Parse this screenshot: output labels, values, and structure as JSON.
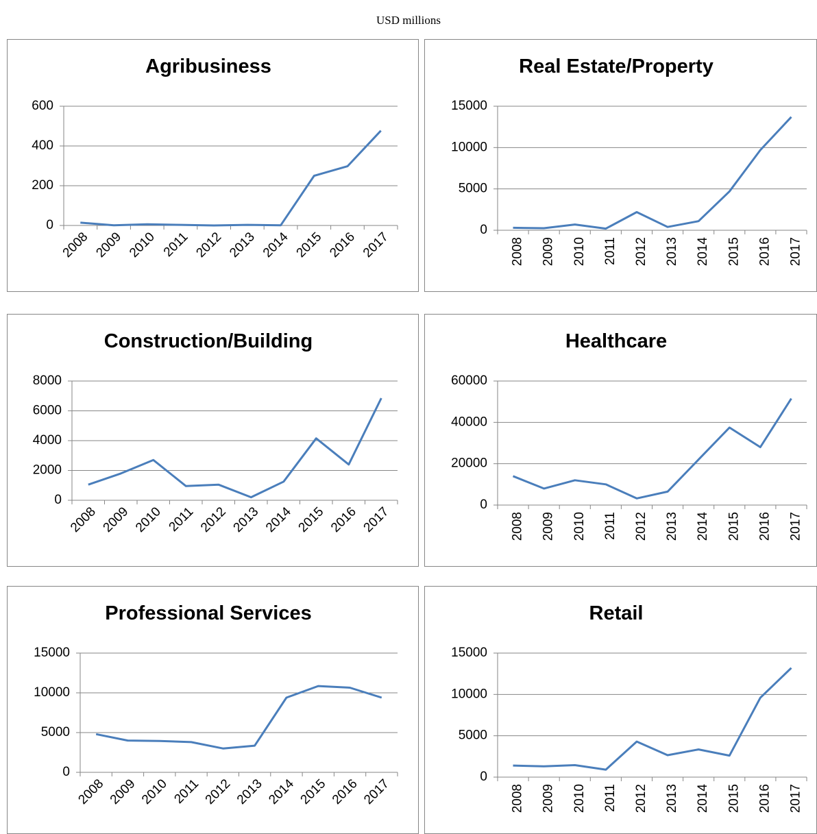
{
  "title": "USD millions",
  "chart_data": [
    {
      "type": "line",
      "title": "Agribusiness",
      "categories": [
        "2008",
        "2009",
        "2010",
        "2011",
        "2012",
        "2013",
        "2014",
        "2015",
        "2016",
        "2017"
      ],
      "values": [
        14,
        1,
        6,
        3,
        0,
        3,
        1,
        250,
        298,
        477
      ],
      "color": "#4a7ebb",
      "ylim": [
        0,
        600
      ],
      "yticks": [
        0,
        200,
        400,
        600
      ],
      "grid": true
    },
    {
      "type": "line",
      "title": "Real Estate/Property",
      "categories": [
        "2008",
        "2009",
        "2010",
        "2011",
        "2012",
        "2013",
        "2014",
        "2015",
        "2016",
        "2017"
      ],
      "values": [
        300,
        250,
        700,
        200,
        2200,
        400,
        1100,
        4700,
        9700,
        13700
      ],
      "color": "#4a7ebb",
      "ylim": [
        0,
        15000
      ],
      "yticks": [
        0,
        5000,
        10000,
        15000
      ],
      "grid": true
    },
    {
      "type": "line",
      "title": "Construction/Building",
      "categories": [
        "2008",
        "2009",
        "2010",
        "2011",
        "2012",
        "2013",
        "2014",
        "2015",
        "2016",
        "2017"
      ],
      "values": [
        1050,
        1800,
        2700,
        950,
        1050,
        200,
        1250,
        4150,
        2400,
        6850
      ],
      "color": "#4a7ebb",
      "ylim": [
        0,
        8000
      ],
      "yticks": [
        0,
        2000,
        4000,
        6000,
        8000
      ],
      "grid": true
    },
    {
      "type": "line",
      "title": "Healthcare",
      "categories": [
        "2008",
        "2009",
        "2010",
        "2011",
        "2012",
        "2013",
        "2014",
        "2015",
        "2016",
        "2017"
      ],
      "values": [
        14000,
        8000,
        12000,
        10000,
        3200,
        6500,
        22000,
        37500,
        28000,
        51500
      ],
      "color": "#4a7ebb",
      "ylim": [
        0,
        60000
      ],
      "yticks": [
        0,
        20000,
        40000,
        60000
      ],
      "grid": true
    },
    {
      "type": "line",
      "title": "Professional Services",
      "categories": [
        "2008",
        "2009",
        "2010",
        "2011",
        "2012",
        "2013",
        "2014",
        "2015",
        "2016",
        "2017"
      ],
      "values": [
        4800,
        4000,
        3950,
        3800,
        3000,
        3350,
        9400,
        10850,
        10650,
        9400
      ],
      "color": "#4a7ebb",
      "ylim": [
        0,
        15000
      ],
      "yticks": [
        0,
        5000,
        10000,
        15000
      ],
      "grid": true
    },
    {
      "type": "line",
      "title": "Retail",
      "categories": [
        "2008",
        "2009",
        "2010",
        "2011",
        "2012",
        "2013",
        "2014",
        "2015",
        "2016",
        "2017"
      ],
      "values": [
        1400,
        1300,
        1450,
        900,
        4300,
        2650,
        3350,
        2600,
        9600,
        13200
      ],
      "color": "#4a7ebb",
      "ylim": [
        0,
        15000
      ],
      "yticks": [
        0,
        5000,
        10000,
        15000
      ],
      "grid": true
    }
  ]
}
